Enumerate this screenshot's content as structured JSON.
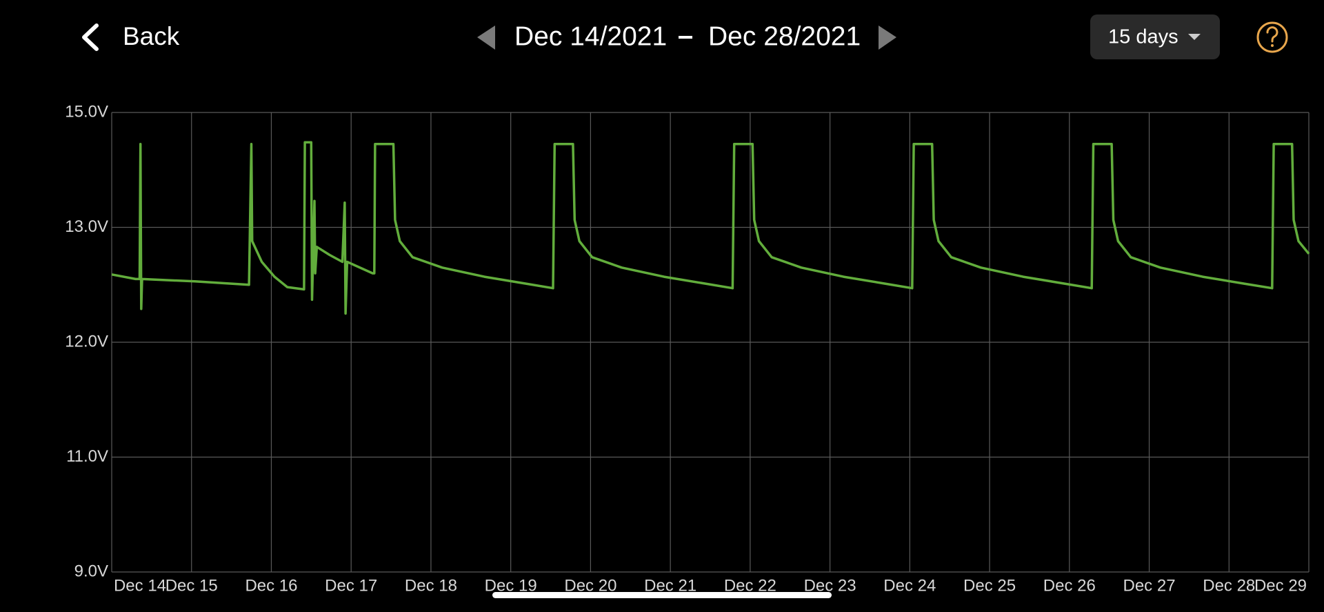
{
  "header": {
    "back": "Back",
    "date_start": "Dec 14/2021",
    "date_end": "Dec 28/2021",
    "range": "15 days"
  },
  "chart_data": {
    "type": "line",
    "series": [
      {
        "color": "#62ad3c",
        "x": [
          14.0,
          14.3,
          14.35,
          14.36,
          14.37,
          14.38,
          15.04,
          15.72,
          15.75,
          15.76,
          15.88,
          16.04,
          16.2,
          16.41,
          16.42,
          16.5,
          16.51,
          16.54,
          16.55,
          16.57,
          16.73,
          16.89,
          16.92,
          16.93,
          16.95,
          17.27,
          17.29,
          17.3,
          17.53,
          17.55,
          17.61,
          17.77,
          18.14,
          18.67,
          19.19,
          19.53,
          19.55,
          19.78,
          19.8,
          19.86,
          20.02,
          20.39,
          20.92,
          21.44,
          21.78,
          21.8,
          22.03,
          22.05,
          22.11,
          22.27,
          22.64,
          23.17,
          23.69,
          24.03,
          24.05,
          24.28,
          24.3,
          24.36,
          24.52,
          24.89,
          25.42,
          25.94,
          26.28,
          26.3,
          26.53,
          26.55,
          26.61,
          26.77,
          27.14,
          27.67,
          28.19,
          28.54,
          28.56,
          28.79,
          28.81,
          28.87,
          29.0
        ],
        "values": [
          12.59,
          12.55,
          12.55,
          14.45,
          12.29,
          12.55,
          12.53,
          12.5,
          14.45,
          12.88,
          12.7,
          12.57,
          12.48,
          12.46,
          14.48,
          14.48,
          12.37,
          13.46,
          12.6,
          12.83,
          12.76,
          12.7,
          13.43,
          12.25,
          12.7,
          12.6,
          12.6,
          14.45,
          14.45,
          13.13,
          12.88,
          12.74,
          12.65,
          12.57,
          12.51,
          12.47,
          14.45,
          14.45,
          13.13,
          12.88,
          12.74,
          12.65,
          12.57,
          12.51,
          12.47,
          14.45,
          14.45,
          13.13,
          12.88,
          12.74,
          12.65,
          12.57,
          12.51,
          12.47,
          14.45,
          14.45,
          13.13,
          12.88,
          12.74,
          12.65,
          12.57,
          12.51,
          12.47,
          14.45,
          14.45,
          13.13,
          12.88,
          12.74,
          12.65,
          12.57,
          12.51,
          12.47,
          14.45,
          14.45,
          13.13,
          12.88,
          12.77
        ]
      }
    ],
    "xlim": [
      14,
      29
    ],
    "xticks": [
      {
        "value": 14,
        "label": "Dec 14"
      },
      {
        "value": 15,
        "label": "Dec 15"
      },
      {
        "value": 16,
        "label": "Dec 16"
      },
      {
        "value": 17,
        "label": "Dec 17"
      },
      {
        "value": 18,
        "label": "Dec 18"
      },
      {
        "value": 19,
        "label": "Dec 19"
      },
      {
        "value": 20,
        "label": "Dec 20"
      },
      {
        "value": 21,
        "label": "Dec 21"
      },
      {
        "value": 22,
        "label": "Dec 22"
      },
      {
        "value": 23,
        "label": "Dec 23"
      },
      {
        "value": 24,
        "label": "Dec 24"
      },
      {
        "value": 25,
        "label": "Dec 25"
      },
      {
        "value": 26,
        "label": "Dec 26"
      },
      {
        "value": 27,
        "label": "Dec 27"
      },
      {
        "value": 28,
        "label": "Dec 28"
      },
      {
        "value": 29,
        "label": "Dec 29"
      }
    ],
    "ylim": [
      9,
      15
    ],
    "yticks": [
      {
        "value": 9,
        "label": "9.0V"
      },
      {
        "value": 11,
        "label": "11.0V"
      },
      {
        "value": 12,
        "label": "12.0V"
      },
      {
        "value": 13,
        "label": "13.0V"
      },
      {
        "value": 15,
        "label": "15.0V"
      }
    ],
    "grid": true
  }
}
